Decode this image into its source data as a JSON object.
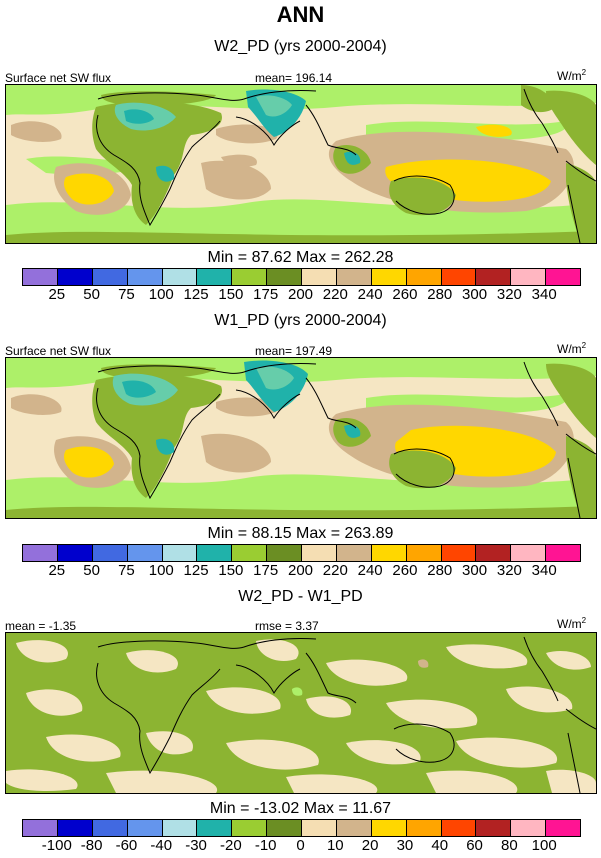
{
  "figure_title": "ANN",
  "colors": {
    "abs": [
      "#9370db",
      "#0000cd",
      "#4169e1",
      "#6495ed",
      "#b0e0e6",
      "#20b2aa",
      "#9acd32",
      "#6b8e23",
      "#f5deb3",
      "#d2b48c",
      "#ffd700",
      "#ffa500",
      "#ff4500",
      "#b22222",
      "#ffb6c1",
      "#ff1493"
    ],
    "diff": [
      "#9370db",
      "#0000cd",
      "#4169e1",
      "#6495ed",
      "#b0e0e6",
      "#20b2aa",
      "#9acd32",
      "#6b8e23",
      "#f5deb3",
      "#d2b48c",
      "#ffd700",
      "#ffa500",
      "#ff4500",
      "#b22222",
      "#ffb6c1",
      "#ff1493"
    ],
    "palette": {
      "lime": "#adf069",
      "green": "#8cb432",
      "wheat": "#f5e6c3",
      "tan": "#d2b48c",
      "gold": "#ffd700",
      "teal": "#20b2aa",
      "cyan": "#66cdaa",
      "coast": "#000000"
    }
  },
  "panels": [
    {
      "id": "w2",
      "title": "W2_PD (yrs 2000-2004)",
      "left_label": "Surface net SW flux",
      "mean_label": "mean= 196.14",
      "units": "W/m",
      "units_sup": "2",
      "minmax": "Min =  87.62 Max = 262.28",
      "ticks": [
        "25",
        "50",
        "75",
        "100",
        "125",
        "150",
        "175",
        "200",
        "220",
        "240",
        "260",
        "280",
        "300",
        "320",
        "340"
      ]
    },
    {
      "id": "w1",
      "title": "W1_PD (yrs 2000-2004)",
      "left_label": "Surface net SW flux",
      "mean_label": "mean= 197.49",
      "units": "W/m",
      "units_sup": "2",
      "minmax": "Min =  88.15 Max = 263.89",
      "ticks": [
        "25",
        "50",
        "75",
        "100",
        "125",
        "150",
        "175",
        "200",
        "220",
        "240",
        "260",
        "280",
        "300",
        "320",
        "340"
      ]
    },
    {
      "id": "diff",
      "title": "W2_PD - W1_PD",
      "left_label": "mean =  -1.35",
      "mean_label": "rmse =  3.37",
      "units": "W/m",
      "units_sup": "2",
      "minmax": "Min = -13.02 Max =  11.67",
      "ticks": [
        "-100",
        "-80",
        "-60",
        "-40",
        "-30",
        "-20",
        "-10",
        "0",
        "10",
        "20",
        "30",
        "40",
        "60",
        "80",
        "100"
      ]
    }
  ]
}
